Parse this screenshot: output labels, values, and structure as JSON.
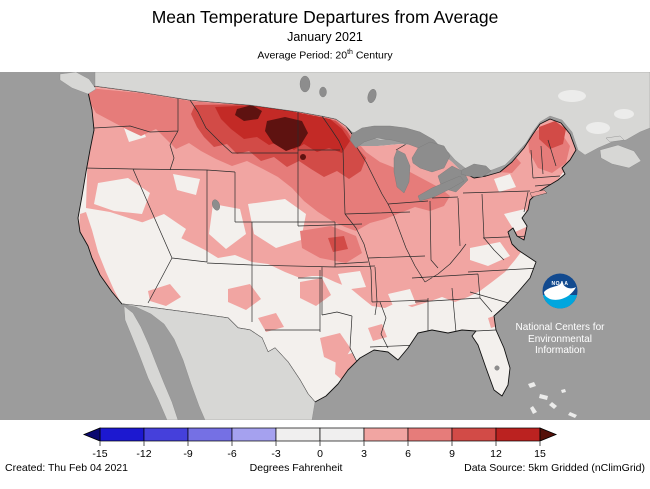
{
  "header": {
    "title": "Mean Temperature Departures from Average",
    "subtitle": "January 2021",
    "period_prefix": "Average Period: 20",
    "period_sup": "th",
    "period_suffix": " Century"
  },
  "map": {
    "noaa_logo": {
      "acronym": "NOAA",
      "org_lines": [
        "National Centers for",
        "Environmental",
        "Information"
      ]
    }
  },
  "colorbar": {
    "ticks": [
      "-15",
      "-12",
      "-9",
      "-6",
      "-3",
      "0",
      "3",
      "6",
      "9",
      "12",
      "15"
    ],
    "segments": [
      "#1C18D0",
      "#4540DB",
      "#7570E4",
      "#A5A1EF",
      "#F0EFEF",
      "#F0EFEF",
      "#F1A5A2",
      "#E67C7A",
      "#D24B47",
      "#BB2220"
    ],
    "arrow_left": "#0B0970",
    "arrow_right": "#551008"
  },
  "footer": {
    "created": "Created: Thu Feb 04 2021",
    "unit": "Degrees Fahrenheit",
    "source": "Data Source: 5km Gridded (nClimGrid)"
  },
  "colors": {
    "ocean": "#9C9C9C",
    "foreign": "#D7D7D5",
    "foreign-light": "#ECECEB",
    "lake": "#8D8D8D",
    "us-base": "#F3F0ED",
    "lv1": "#F1A5A2",
    "lv2": "#E67C7A",
    "lv3": "#D24B47",
    "lv4": "#C32A26",
    "lv5": "#5E1210",
    "state-line": "#2B2B2B",
    "nation-line": "#111111",
    "logo-dark": "#124A8F",
    "logo-light": "#00A6DE"
  }
}
